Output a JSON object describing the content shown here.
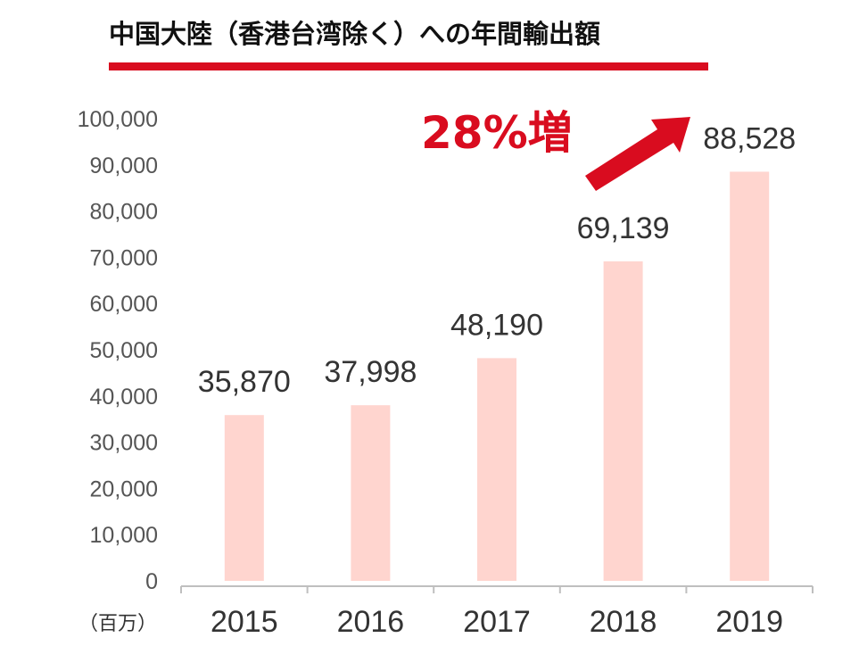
{
  "chart_data": {
    "type": "bar",
    "title": "中国大陸（香港台湾除く）への年間輸出額",
    "unit_label": "（百万）",
    "categories": [
      "2015",
      "2016",
      "2017",
      "2018",
      "2019"
    ],
    "values": [
      35870,
      37998,
      48190,
      69139,
      88528
    ],
    "data_labels": [
      "35,870",
      "37,998",
      "48,190",
      "69,139",
      "88,528"
    ],
    "ylim": [
      0,
      100000
    ],
    "yticks": [
      0,
      10000,
      20000,
      30000,
      40000,
      50000,
      60000,
      70000,
      80000,
      90000,
      100000
    ],
    "ytick_labels": [
      "0",
      "10,000",
      "20,000",
      "30,000",
      "40,000",
      "50,000",
      "60,000",
      "70,000",
      "80,000",
      "90,000",
      "100,000"
    ],
    "grid": false,
    "annotation": {
      "text": "28%増",
      "arrow": "up-right"
    },
    "colors": {
      "bar": "#ffd5cf",
      "accent": "#d90c1f",
      "axis": "#bfbfbf"
    }
  }
}
